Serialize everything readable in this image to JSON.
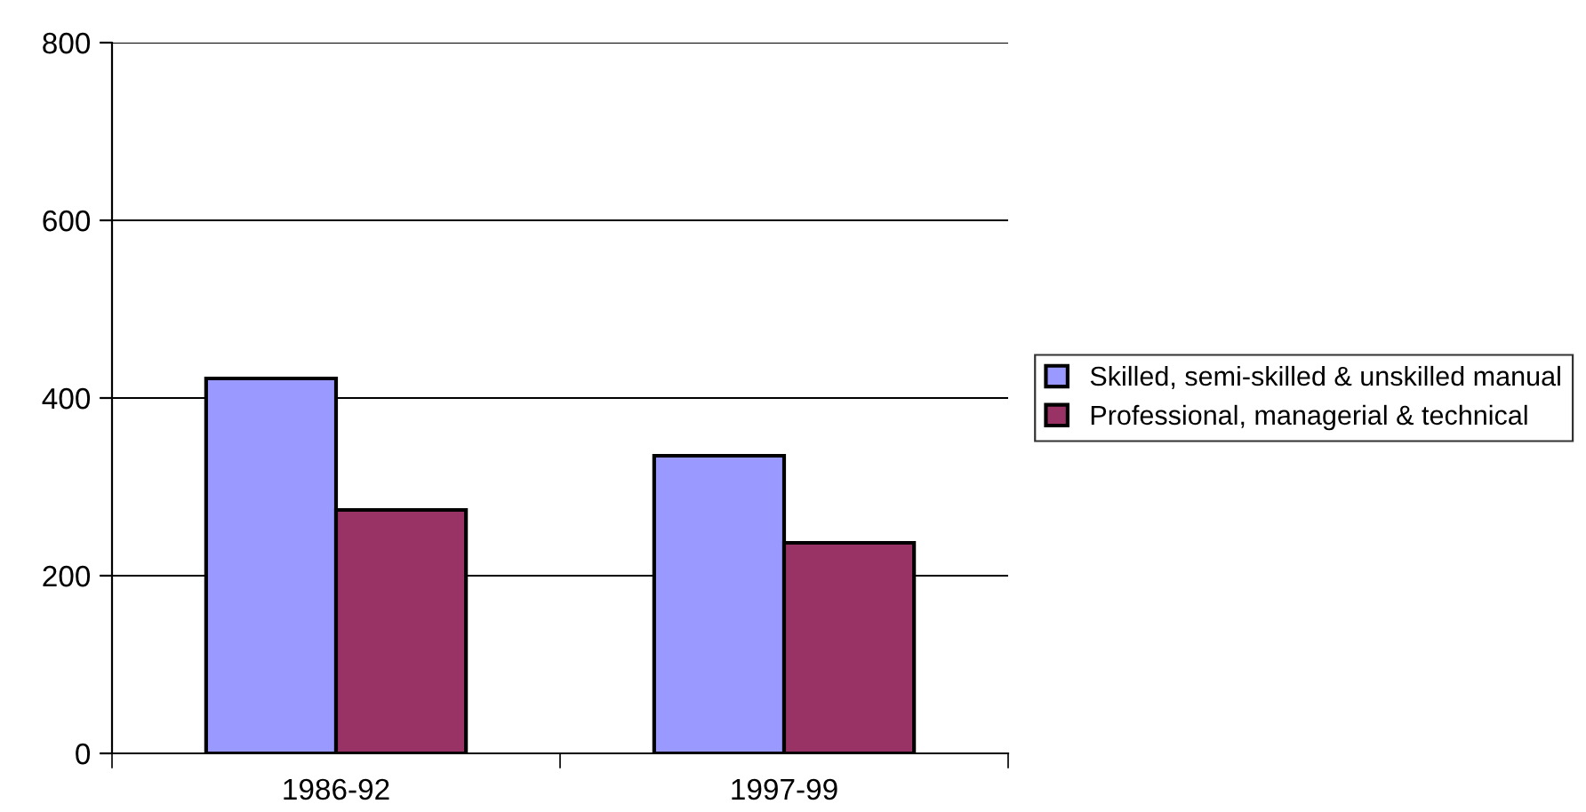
{
  "chart_data": {
    "type": "bar",
    "categories": [
      "1986-92",
      "1997-99"
    ],
    "series": [
      {
        "name": "Skilled, semi-skilled & unskilled manual",
        "color": "#9999ff",
        "values": [
          422,
          335
        ]
      },
      {
        "name": "Professional, managerial & technical",
        "color": "#993366",
        "values": [
          274,
          237
        ]
      }
    ],
    "ylim": [
      0,
      800
    ],
    "yticks": [
      0,
      200,
      400,
      600,
      800
    ],
    "grid": "y",
    "legend": "right"
  }
}
